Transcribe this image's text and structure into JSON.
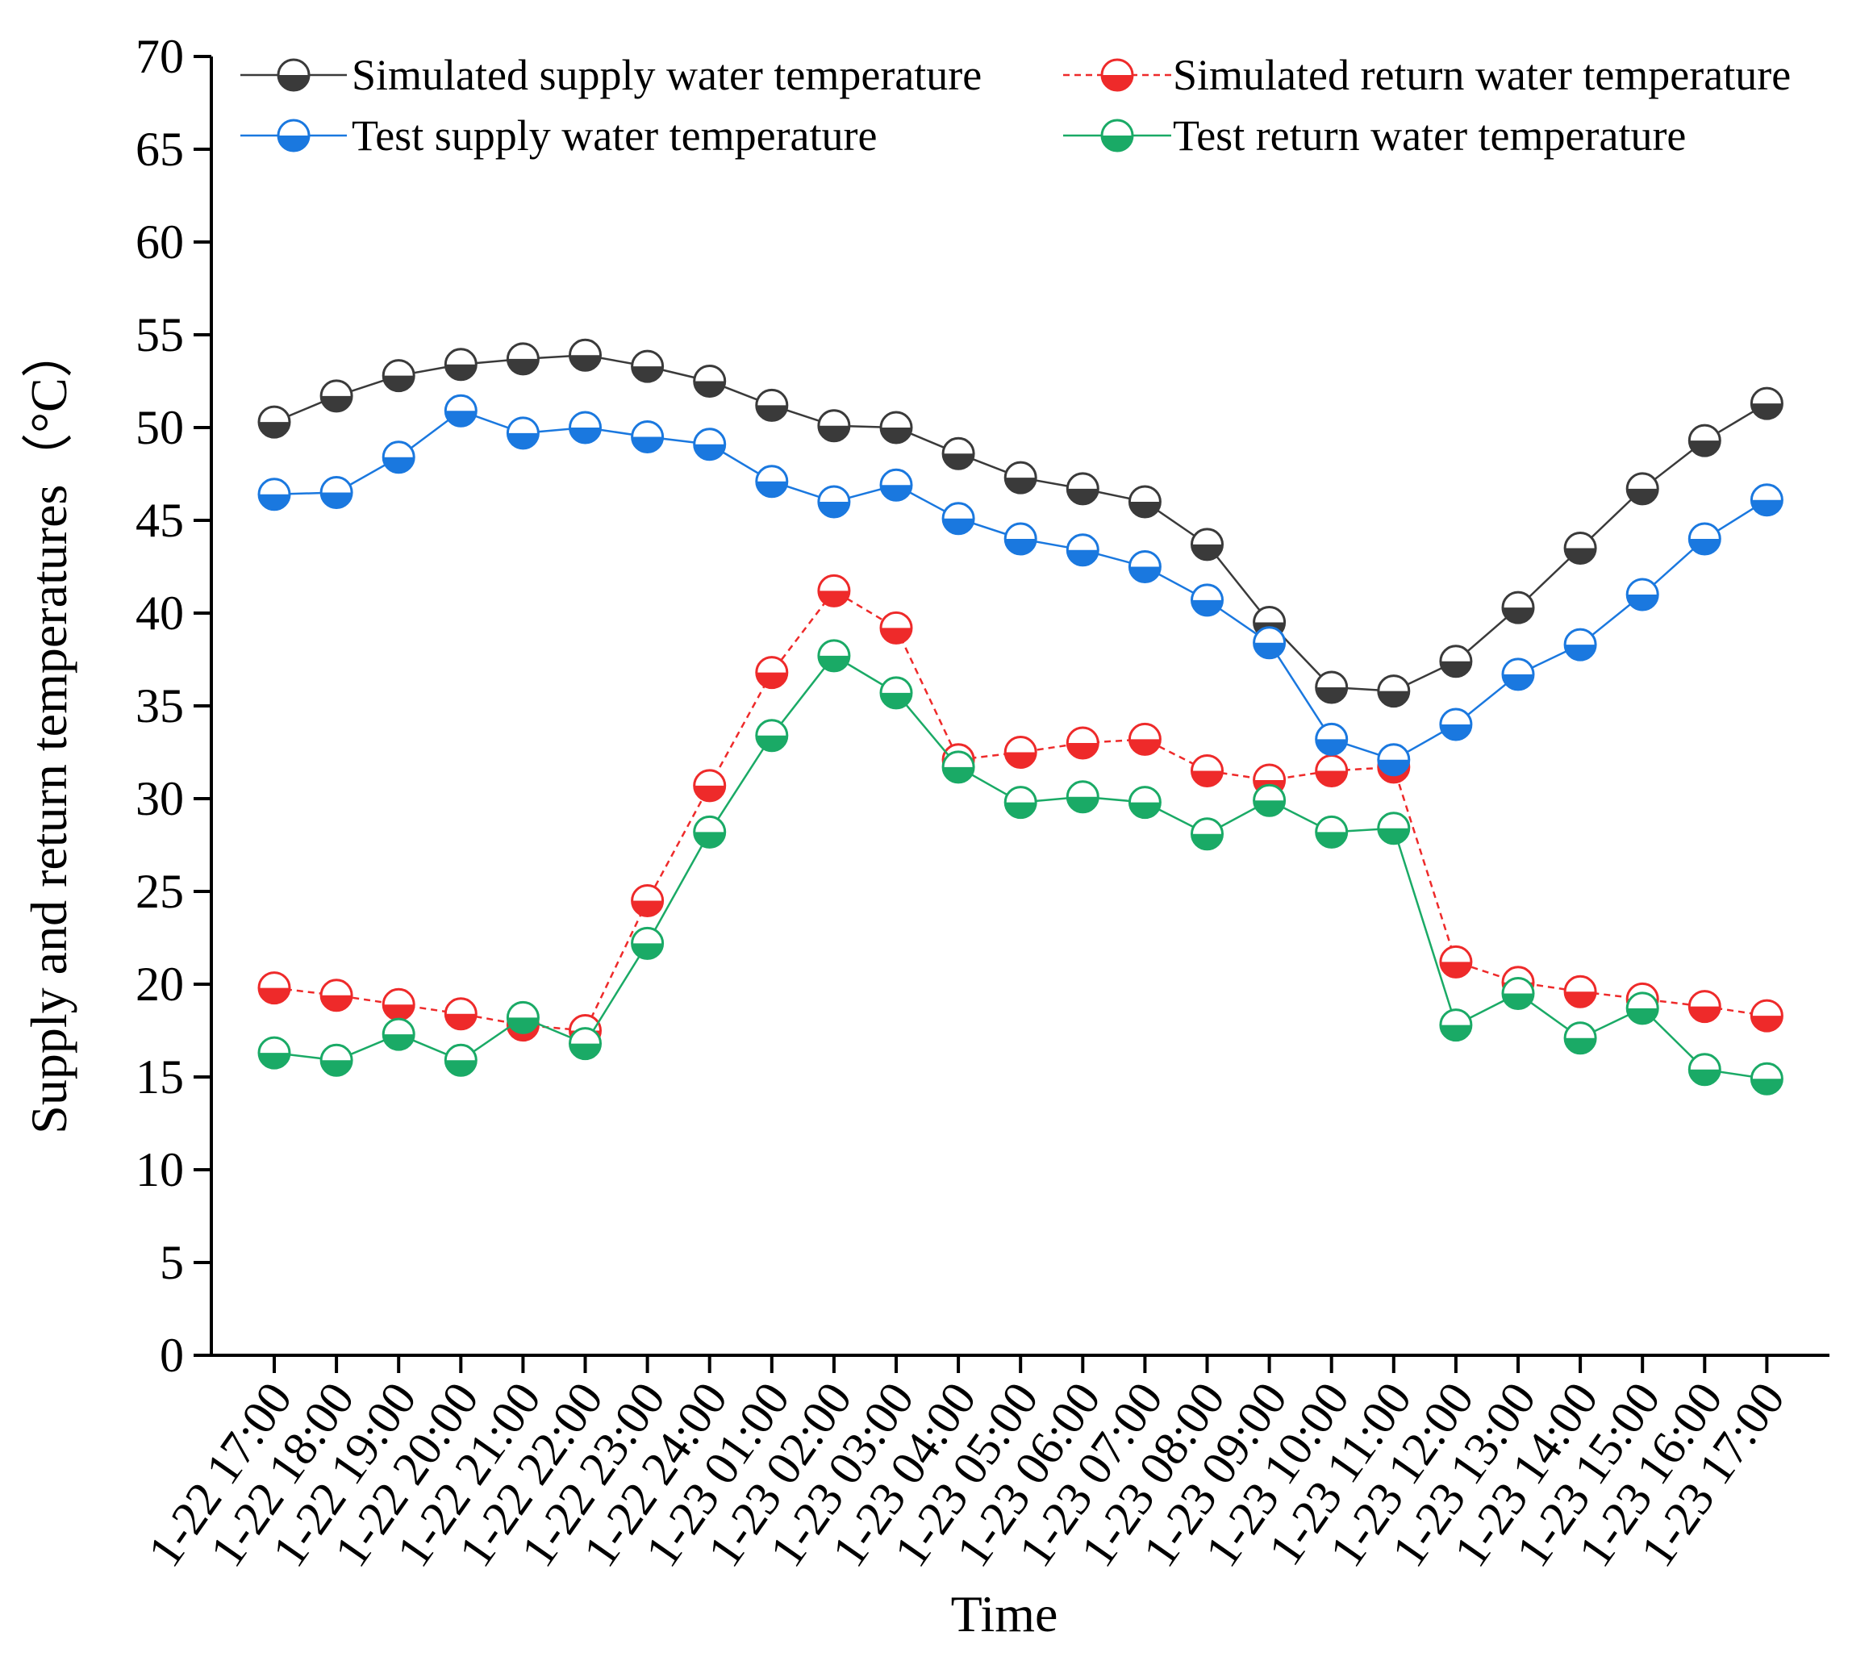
{
  "chart_data": {
    "type": "line",
    "xlabel": "Time",
    "ylabel": "Supply and return temperatures（°C）",
    "ylim": [
      0,
      70
    ],
    "yticks": [
      "0",
      "5",
      "10",
      "15",
      "20",
      "25",
      "30",
      "35",
      "40",
      "45",
      "50",
      "55",
      "60",
      "65",
      "70"
    ],
    "legend_position": "top",
    "categories": [
      "1-22 17:00",
      "1-22 18:00",
      "1-22 19:00",
      "1-22 20:00",
      "1-22 21:00",
      "1-22 22:00",
      "1-22 23:00",
      "1-22 24:00",
      "1-23 01:00",
      "1-23 02:00",
      "1-23 03:00",
      "1-23 04:00",
      "1-23 05:00",
      "1-23 06:00",
      "1-23 07:00",
      "1-23 08:00",
      "1-23 09:00",
      "1-23 10:00",
      "1-23 11:00",
      "1-23 12:00",
      "1-23 13:00",
      "1-23 14:00",
      "1-23 15:00",
      "1-23 16:00",
      "1-23 17:00"
    ],
    "series": [
      {
        "name": "Simulated supply water temperature",
        "color": "#3a3a3a",
        "dashed": false,
        "values": [
          50.3,
          51.7,
          52.8,
          53.4,
          53.7,
          53.9,
          53.3,
          52.5,
          51.2,
          50.1,
          50.0,
          48.6,
          47.3,
          46.7,
          46.0,
          43.7,
          39.5,
          36.0,
          35.8,
          37.4,
          40.3,
          43.5,
          46.7,
          49.3,
          51.3
        ]
      },
      {
        "name": "Simulated return water temperature",
        "color": "#ee2a2a",
        "dashed": true,
        "values": [
          19.8,
          19.4,
          18.9,
          18.4,
          17.8,
          17.5,
          24.5,
          30.7,
          36.8,
          41.2,
          39.2,
          32.1,
          32.5,
          33.0,
          33.2,
          31.5,
          31.0,
          31.5,
          31.7,
          21.2,
          20.1,
          19.6,
          19.2,
          18.8,
          18.3
        ]
      },
      {
        "name": "Test supply water temperature",
        "color": "#1a78df",
        "dashed": false,
        "values": [
          46.4,
          46.5,
          48.4,
          50.9,
          49.7,
          50.0,
          49.5,
          49.1,
          47.1,
          46.0,
          46.9,
          45.1,
          44.0,
          43.4,
          42.5,
          40.7,
          38.4,
          33.2,
          32.1,
          34.0,
          36.7,
          38.3,
          41.0,
          44.0,
          46.1
        ]
      },
      {
        "name": "Test return water temperature",
        "color": "#1aaa66",
        "dashed": false,
        "values": [
          16.3,
          15.9,
          17.3,
          15.9,
          18.2,
          16.8,
          22.2,
          28.2,
          33.4,
          37.7,
          35.7,
          31.7,
          29.8,
          30.1,
          29.8,
          28.1,
          29.9,
          28.2,
          28.4,
          17.8,
          19.5,
          17.1,
          18.7,
          15.4,
          14.9
        ]
      }
    ]
  }
}
